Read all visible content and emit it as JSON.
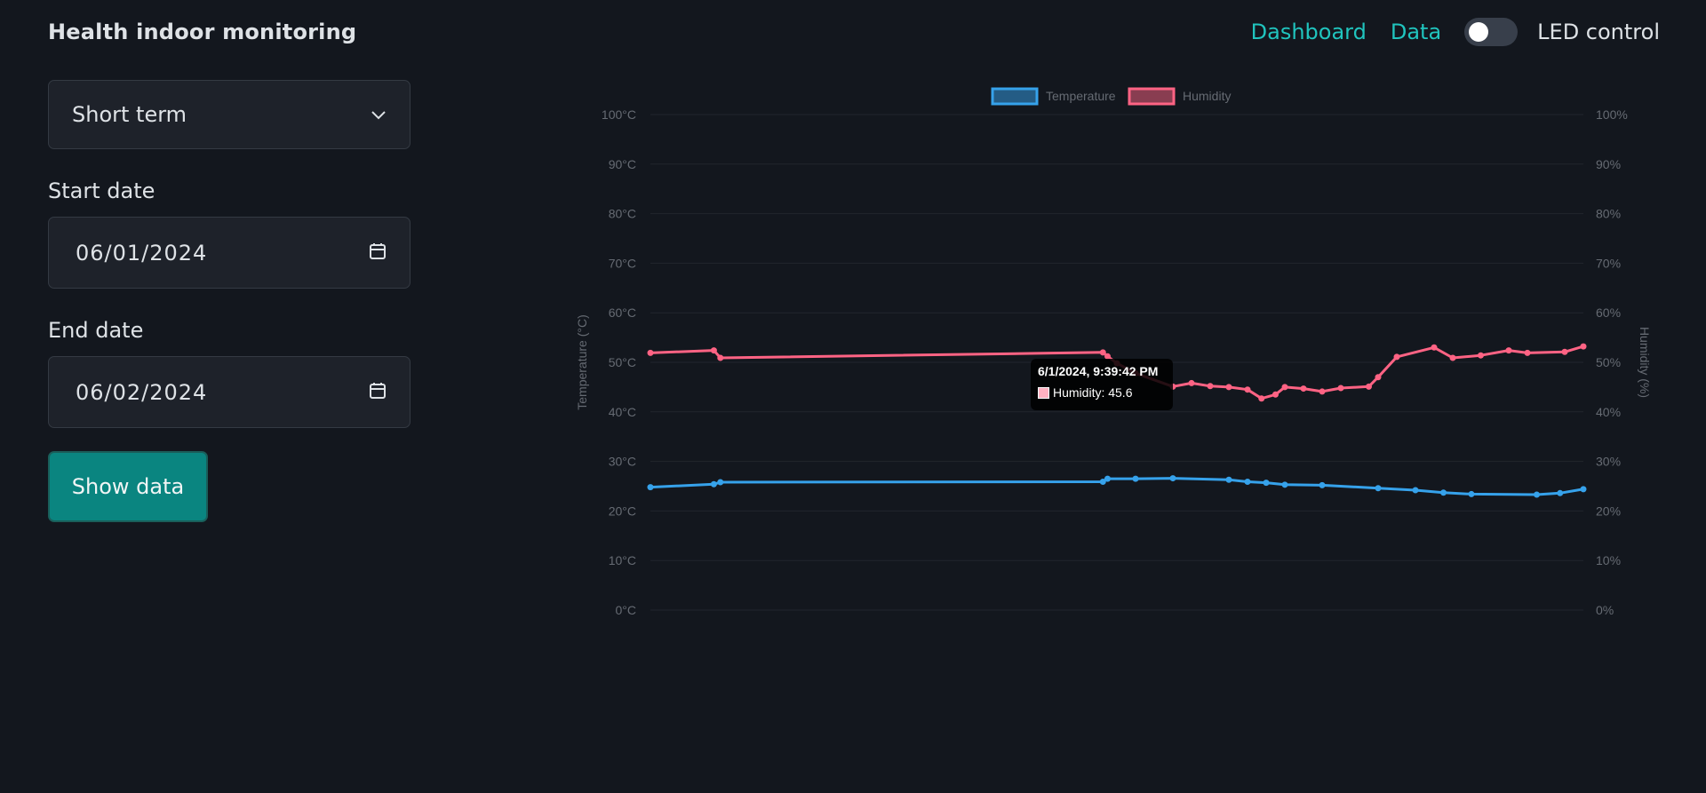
{
  "app": {
    "title": "Health indoor monitoring"
  },
  "nav": {
    "links": [
      "Dashboard",
      "Data"
    ],
    "led_label": "LED control",
    "led_on": false
  },
  "sidebar": {
    "range_select": "Short term",
    "start_label": "Start date",
    "start_value": "06/01/2024",
    "end_label": "End date",
    "end_value": "06/02/2024",
    "button_label": "Show data"
  },
  "colors": {
    "accent": "#20c4be",
    "button": "#0a8580",
    "temperature": "#36a2eb",
    "humidity": "#ff6384"
  },
  "tooltip": {
    "title": "6/1/2024, 9:39:42 PM",
    "label": "Humidity: 45.6"
  },
  "chart_data": {
    "type": "line",
    "legend": [
      "Temperature",
      "Humidity"
    ],
    "legend_position": "top",
    "grid": true,
    "y_left": {
      "label": "Temperature (°C)",
      "range": [
        0,
        100
      ],
      "ticks": [
        "0°C",
        "10°C",
        "20°C",
        "30°C",
        "40°C",
        "50°C",
        "60°C",
        "70°C",
        "80°C",
        "90°C",
        "100°C"
      ]
    },
    "y_right": {
      "label": "Humidity (%)",
      "range": [
        0,
        100
      ],
      "ticks": [
        "0%",
        "10%",
        "20%",
        "30%",
        "40%",
        "50%",
        "60%",
        "70%",
        "80%",
        "90%",
        "100%"
      ]
    },
    "x_range": [
      0,
      1000
    ],
    "series": [
      {
        "name": "Temperature",
        "axis": "left",
        "points": [
          [
            0,
            24.8
          ],
          [
            68,
            25.4
          ],
          [
            75,
            25.8
          ],
          [
            485,
            25.9
          ],
          [
            490,
            26.5
          ],
          [
            520,
            26.5
          ],
          [
            560,
            26.6
          ],
          [
            620,
            26.3
          ],
          [
            640,
            25.9
          ],
          [
            660,
            25.7
          ],
          [
            680,
            25.3
          ],
          [
            720,
            25.2
          ],
          [
            780,
            24.6
          ],
          [
            820,
            24.2
          ],
          [
            850,
            23.7
          ],
          [
            880,
            23.4
          ],
          [
            950,
            23.3
          ],
          [
            975,
            23.6
          ],
          [
            1000,
            24.4
          ]
        ]
      },
      {
        "name": "Humidity",
        "axis": "left",
        "points": [
          [
            0,
            51.9
          ],
          [
            68,
            52.4
          ],
          [
            75,
            50.9
          ],
          [
            485,
            52.0
          ],
          [
            490,
            51.2
          ],
          [
            500,
            49.8
          ],
          [
            520,
            47.8
          ],
          [
            560,
            45.1
          ],
          [
            580,
            45.8
          ],
          [
            600,
            45.2
          ],
          [
            620,
            45.0
          ],
          [
            640,
            44.5
          ],
          [
            655,
            42.7
          ],
          [
            670,
            43.5
          ],
          [
            680,
            45.0
          ],
          [
            700,
            44.7
          ],
          [
            720,
            44.1
          ],
          [
            740,
            44.8
          ],
          [
            770,
            45.1
          ],
          [
            780,
            47.0
          ],
          [
            800,
            51.1
          ],
          [
            840,
            53.0
          ],
          [
            860,
            50.9
          ],
          [
            890,
            51.4
          ],
          [
            920,
            52.4
          ],
          [
            940,
            51.9
          ],
          [
            980,
            52.1
          ],
          [
            1000,
            53.2
          ]
        ]
      }
    ]
  }
}
